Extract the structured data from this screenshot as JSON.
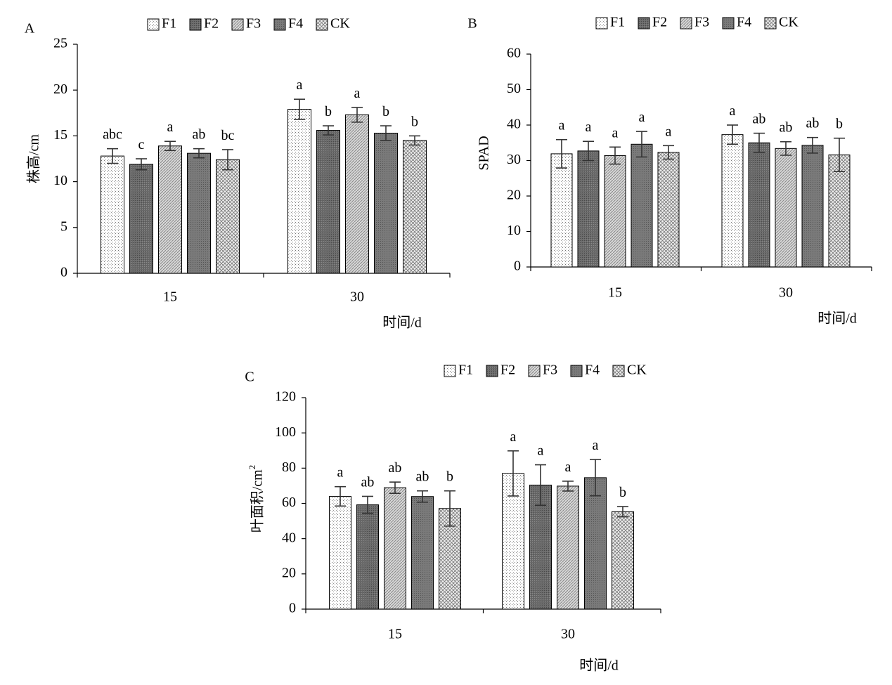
{
  "legend_series": [
    "F1",
    "F2",
    "F3",
    "F4",
    "CK"
  ],
  "panels": [
    "A",
    "B",
    "C"
  ],
  "chart_data": [
    {
      "panel_label": "A",
      "type": "bar",
      "categories": [
        "15",
        "30"
      ],
      "xlabel": "时间/d",
      "ylabel": "株高/cm",
      "ylim": [
        0,
        25
      ],
      "yticks": [
        0,
        5,
        10,
        15,
        20,
        25
      ],
      "legend_position": "top",
      "grid": false,
      "series": [
        {
          "name": "F1",
          "values": [
            12.8,
            17.9
          ],
          "errors": [
            0.8,
            1.1
          ],
          "letters": [
            "abc",
            "a"
          ]
        },
        {
          "name": "F2",
          "values": [
            11.9,
            15.6
          ],
          "errors": [
            0.6,
            0.5
          ],
          "letters": [
            "c",
            "b"
          ]
        },
        {
          "name": "F3",
          "values": [
            13.9,
            17.3
          ],
          "errors": [
            0.5,
            0.8
          ],
          "letters": [
            "a",
            "a"
          ]
        },
        {
          "name": "F4",
          "values": [
            13.1,
            15.3
          ],
          "errors": [
            0.5,
            0.8
          ],
          "letters": [
            "ab",
            "b"
          ]
        },
        {
          "name": "CK",
          "values": [
            12.4,
            14.5
          ],
          "errors": [
            1.1,
            0.5
          ],
          "letters": [
            "bc",
            "b"
          ]
        }
      ]
    },
    {
      "panel_label": "B",
      "type": "bar",
      "categories": [
        "15",
        "30"
      ],
      "xlabel": "时间/d",
      "ylabel": "SPAD",
      "ylim": [
        0,
        60
      ],
      "yticks": [
        0,
        10,
        20,
        30,
        40,
        50,
        60
      ],
      "legend_position": "top",
      "grid": false,
      "series": [
        {
          "name": "F1",
          "values": [
            31.9,
            37.3
          ],
          "errors": [
            4.0,
            2.7
          ],
          "letters": [
            "a",
            "a"
          ]
        },
        {
          "name": "F2",
          "values": [
            32.7,
            35.0
          ],
          "errors": [
            2.7,
            2.7
          ],
          "letters": [
            "a",
            "ab"
          ]
        },
        {
          "name": "F3",
          "values": [
            31.4,
            33.4
          ],
          "errors": [
            2.4,
            1.9
          ],
          "letters": [
            "a",
            "ab"
          ]
        },
        {
          "name": "F4",
          "values": [
            34.6,
            34.3
          ],
          "errors": [
            3.6,
            2.2
          ],
          "letters": [
            "a",
            "ab"
          ]
        },
        {
          "name": "CK",
          "values": [
            32.3,
            31.6
          ],
          "errors": [
            1.9,
            4.7
          ],
          "letters": [
            "a",
            "b"
          ]
        }
      ]
    },
    {
      "panel_label": "C",
      "type": "bar",
      "categories": [
        "15",
        "30"
      ],
      "xlabel": "时间/d",
      "ylabel": "叶面积/cm",
      "ylabel_sup": "2",
      "ylim": [
        0,
        120
      ],
      "yticks": [
        0,
        20,
        40,
        60,
        80,
        100,
        120
      ],
      "legend_position": "top",
      "grid": false,
      "series": [
        {
          "name": "F1",
          "values": [
            64.0,
            77.0
          ],
          "errors": [
            5.5,
            12.8
          ],
          "letters": [
            "a",
            "a"
          ]
        },
        {
          "name": "F2",
          "values": [
            59.2,
            70.4
          ],
          "errors": [
            4.8,
            11.5
          ],
          "letters": [
            "ab",
            "a"
          ]
        },
        {
          "name": "F3",
          "values": [
            68.9,
            69.8
          ],
          "errors": [
            3.2,
            2.8
          ],
          "letters": [
            "ab",
            "a"
          ]
        },
        {
          "name": "F4",
          "values": [
            63.9,
            74.6
          ],
          "errors": [
            3.2,
            10.3
          ],
          "letters": [
            "ab",
            "a"
          ]
        },
        {
          "name": "CK",
          "values": [
            57.1,
            55.3
          ],
          "errors": [
            10.0,
            2.9
          ],
          "letters": [
            "b",
            "b"
          ]
        }
      ]
    }
  ]
}
